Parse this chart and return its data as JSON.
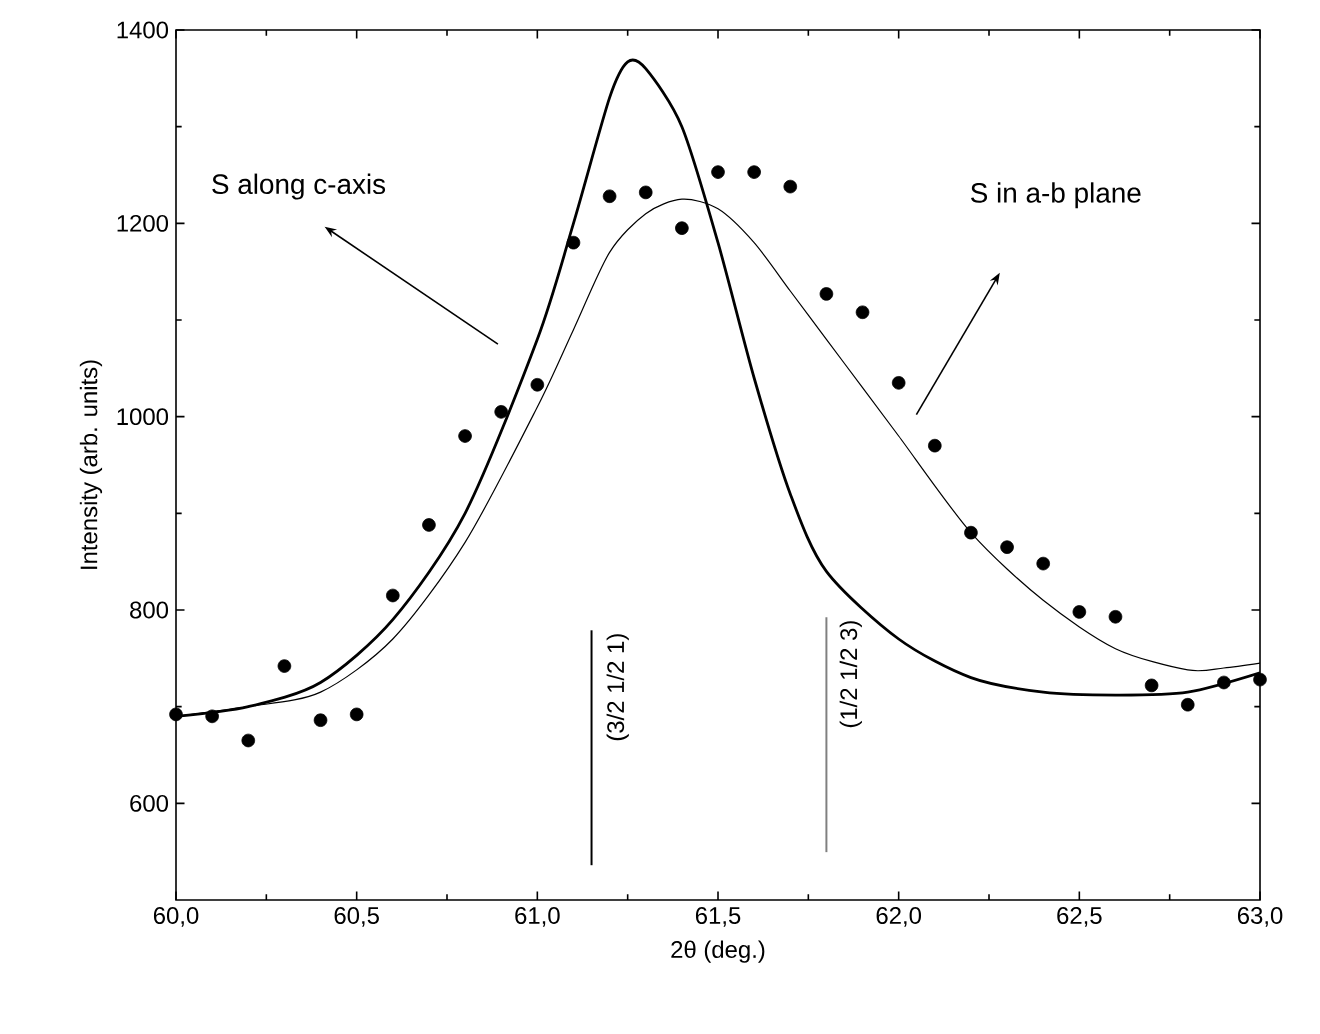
{
  "chart_data": {
    "type": "scatter",
    "xlabel": "2θ (deg.)",
    "ylabel": "Intensity (arb. units)",
    "xlim": [
      60,
      63
    ],
    "ylim": [
      500,
      1400
    ],
    "xticks": [
      {
        "value": 60,
        "label": "60,0"
      },
      {
        "value": 60.5,
        "label": "60,5"
      },
      {
        "value": 61,
        "label": "61,0"
      },
      {
        "value": 61.5,
        "label": "61,5"
      },
      {
        "value": 62,
        "label": "62,0"
      },
      {
        "value": 62.5,
        "label": "62,5"
      },
      {
        "value": 63,
        "label": "63,0"
      }
    ],
    "yticks": [
      600,
      800,
      1000,
      1200,
      1400
    ],
    "series": [
      {
        "marker": "circle",
        "color": "#000000",
        "x": [
          60.0,
          60.1,
          60.2,
          60.3,
          60.4,
          60.5,
          60.6,
          60.7,
          60.8,
          60.9,
          61.0,
          61.1,
          61.2,
          61.3,
          61.4,
          61.5,
          61.6,
          61.7,
          61.8,
          61.9,
          62.0,
          62.1,
          62.2,
          62.3,
          62.4,
          62.5,
          62.6,
          62.7,
          62.8,
          62.9,
          63.0
        ],
        "values": [
          692,
          690,
          665,
          742,
          686,
          692,
          815,
          888,
          980,
          1005,
          1033,
          1180,
          1228,
          1232,
          1195,
          1253,
          1253,
          1238,
          1127,
          1108,
          1035,
          970,
          880,
          865,
          848,
          798,
          793,
          722,
          702,
          725,
          728
        ]
      },
      {
        "type": "line",
        "color": "#000000",
        "x": [
          60.0,
          60.2,
          60.4,
          60.6,
          60.8,
          61.0,
          61.1,
          61.2,
          61.25,
          61.3,
          61.4,
          61.5,
          61.6,
          61.7,
          61.8,
          62.0,
          62.2,
          62.4,
          62.6,
          62.8,
          63.0
        ],
        "values": [
          690,
          700,
          725,
          790,
          900,
          1080,
          1200,
          1330,
          1367,
          1360,
          1300,
          1180,
          1040,
          920,
          840,
          770,
          730,
          715,
          712,
          715,
          735
        ]
      },
      {
        "type": "line",
        "color": "#000000",
        "x": [
          60.0,
          60.2,
          60.4,
          60.6,
          60.8,
          61.0,
          61.1,
          61.2,
          61.3,
          61.4,
          61.5,
          61.6,
          61.7,
          61.8,
          61.9,
          62.0,
          62.2,
          62.4,
          62.6,
          62.8,
          62.9,
          63.0
        ],
        "values": [
          690,
          700,
          715,
          770,
          870,
          1010,
          1090,
          1170,
          1210,
          1225,
          1215,
          1180,
          1130,
          1080,
          1030,
          980,
          880,
          810,
          760,
          738,
          740,
          745
        ]
      }
    ],
    "ref_lines": [
      {
        "axis": "x",
        "value": 61.15,
        "color": "#000000"
      },
      {
        "axis": "x",
        "value": 61.8,
        "color": "#808080"
      }
    ],
    "annotations": [
      "S along  c-axis",
      "S in a-b plane",
      "(3/2 1/2 1)",
      "(1/2 1/2 3)"
    ]
  }
}
